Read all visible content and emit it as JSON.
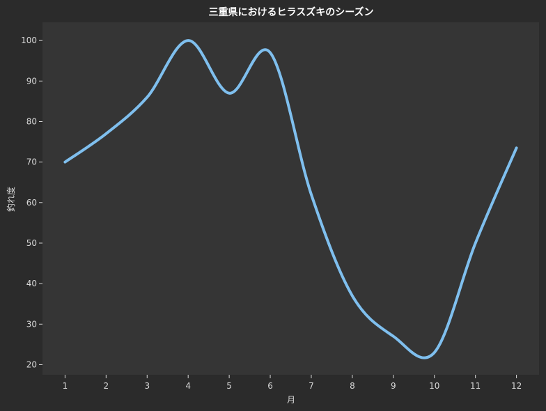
{
  "chart_data": {
    "type": "line",
    "title": "三重県におけるヒラスズキのシーズン",
    "xlabel": "月",
    "ylabel": "釣れ度",
    "x": [
      1,
      2,
      3,
      4,
      5,
      6,
      7,
      8,
      9,
      10,
      11,
      12
    ],
    "x_ticks": [
      "1",
      "2",
      "3",
      "4",
      "5",
      "6",
      "7",
      "8",
      "9",
      "10",
      "11",
      "12"
    ],
    "y_ticks": [
      "20",
      "30",
      "40",
      "50",
      "60",
      "70",
      "80",
      "90",
      "100"
    ],
    "xlim": [
      0.45,
      12.55
    ],
    "ylim": [
      17.5,
      104.5
    ],
    "grid": false,
    "series": [
      {
        "values": [
          70,
          77,
          86,
          100,
          87,
          97,
          62,
          37,
          27,
          23,
          50,
          73.5
        ]
      }
    ],
    "colors": {
      "background": "#2b2b2b",
      "plot_area": "#353535",
      "line": "#7fbfee",
      "text": "#d8d8d8",
      "title": "#ffffff"
    }
  }
}
